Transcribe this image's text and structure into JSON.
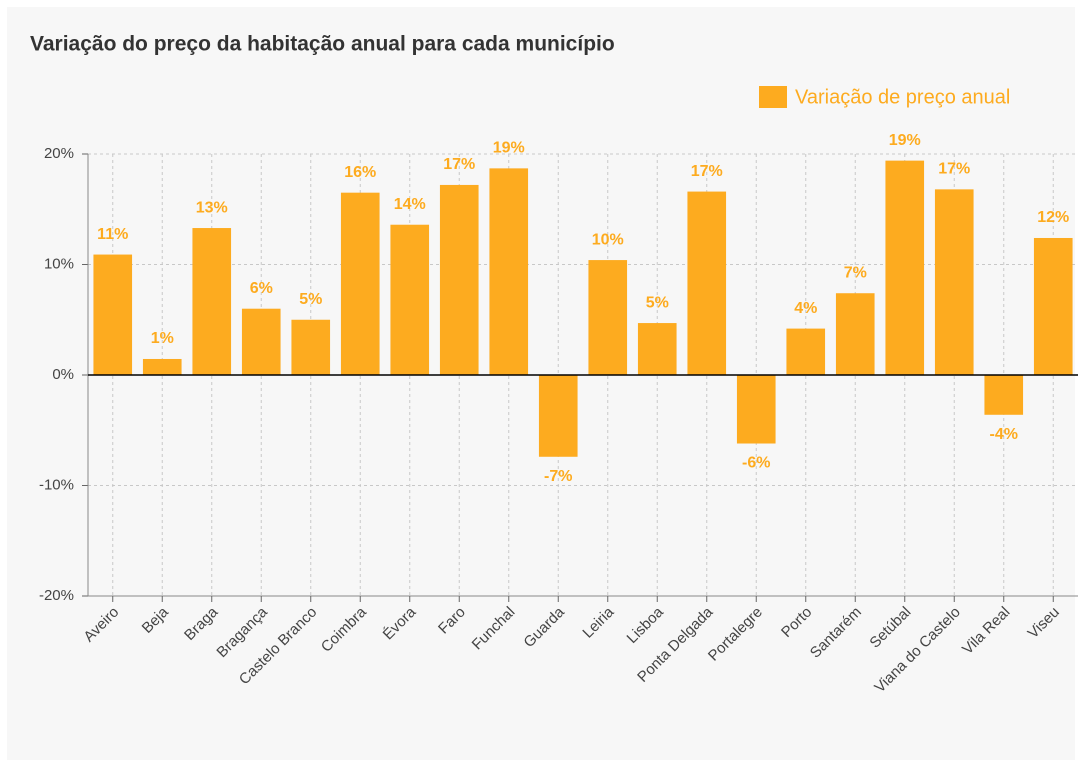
{
  "chart_data": {
    "type": "bar",
    "title": "Variação do preço da habitação anual para cada município",
    "categories": [
      "Aveiro",
      "Beja",
      "Braga",
      "Bragança",
      "Castelo Branco",
      "Coimbra",
      "Évora",
      "Faro",
      "Funchal",
      "Guarda",
      "Leiria",
      "Lisboa",
      "Ponta Delgada",
      "Portalegre",
      "Porto",
      "Santarém",
      "Setúbal",
      "Viana do Castelo",
      "Vila Real",
      "Viseu"
    ],
    "series": [
      {
        "name": "Variação de preço anual",
        "color": "#fdab1f",
        "values": [
          10.9,
          1.45,
          13.3,
          6.0,
          5.0,
          16.5,
          13.6,
          17.2,
          18.7,
          -7.4,
          10.4,
          4.7,
          16.6,
          -6.2,
          4.2,
          7.4,
          19.4,
          16.8,
          -3.6,
          12.4
        ],
        "value_labels": [
          "11%",
          "1%",
          "13%",
          "6%",
          "5%",
          "16%",
          "14%",
          "17%",
          "19%",
          "-7%",
          "10%",
          "5%",
          "17%",
          "-6%",
          "4%",
          "7%",
          "19%",
          "17%",
          "-4%",
          "12%"
        ]
      }
    ],
    "ylim": [
      -20,
      20
    ],
    "yticks": [
      {
        "value": -20,
        "label": "-20%"
      },
      {
        "value": -10,
        "label": "-10%"
      },
      {
        "value": 0,
        "label": "0%"
      },
      {
        "value": 10,
        "label": "10%"
      },
      {
        "value": 20,
        "label": "20%"
      }
    ],
    "grid": true,
    "legend": "top-right"
  }
}
